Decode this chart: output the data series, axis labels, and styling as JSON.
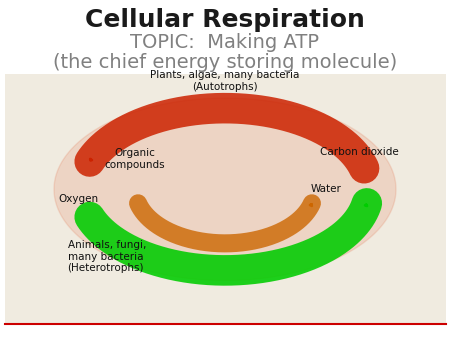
{
  "title": "Cellular Respiration",
  "subtitle1": "TOPIC:  Making ATP",
  "subtitle2": "(the chief energy storing molecule)",
  "title_fontsize": 18,
  "subtitle1_fontsize": 14,
  "subtitle2_fontsize": 14,
  "title_color": "#1a1a1a",
  "subtitle_color": "#808080",
  "bg_color": "#ffffff",
  "divider_color": "#cc0000",
  "labels": {
    "autotrophs": "Plants, algae, many bacteria\n(Autotrophs)",
    "heterotrophs": "Animals, fungi,\nmany bacteria\n(Heterotrophs)",
    "organic": "Organic\ncompounds",
    "oxygen": "Oxygen",
    "co2": "Carbon dioxide",
    "water": "Water"
  },
  "arrow_green_color": "#00cc00",
  "arrow_red_color": "#cc2200",
  "arrow_orange_color": "#cc6600"
}
